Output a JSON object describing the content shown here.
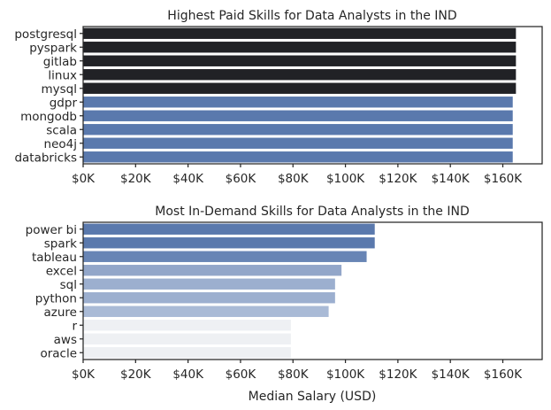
{
  "chart_data": [
    {
      "type": "bar",
      "orientation": "horizontal",
      "title": "Highest Paid Skills for Data Analysts in the IND",
      "xlabel": "",
      "ylabel": "",
      "xlim": [
        0,
        175000
      ],
      "xticks": [
        0,
        20000,
        40000,
        60000,
        80000,
        100000,
        120000,
        140000,
        160000
      ],
      "xtick_labels": [
        "$0K",
        "$20K",
        "$40K",
        "$60K",
        "$80K",
        "$100K",
        "$120K",
        "$140K",
        "$160K"
      ],
      "categories": [
        "postgresql",
        "pyspark",
        "gitlab",
        "linux",
        "mysql",
        "gdpr",
        "mongodb",
        "scala",
        "neo4j",
        "databricks"
      ],
      "values": [
        165000,
        165000,
        165000,
        165000,
        165000,
        163782,
        163782,
        163782,
        163782,
        163782
      ],
      "colors": [
        "#212226",
        "#212226",
        "#212226",
        "#212226",
        "#212226",
        "#5a79ad",
        "#5a79ad",
        "#5a79ad",
        "#5a79ad",
        "#5a79ad"
      ],
      "grid": false,
      "legend": "none"
    },
    {
      "type": "bar",
      "orientation": "horizontal",
      "title": "Most In-Demand Skills for Data Analysts in the IND",
      "xlabel": "Median Salary (USD)",
      "ylabel": "",
      "xlim": [
        0,
        175000
      ],
      "xticks": [
        0,
        20000,
        40000,
        60000,
        80000,
        100000,
        120000,
        140000,
        160000
      ],
      "xtick_labels": [
        "$0K",
        "$20K",
        "$40K",
        "$60K",
        "$80K",
        "$100K",
        "$120K",
        "$140K",
        "$160K"
      ],
      "categories": [
        "power bi",
        "spark",
        "tableau",
        "excel",
        "sql",
        "python",
        "azure",
        "r",
        "aws",
        "oracle"
      ],
      "values": [
        111175,
        111175,
        108087,
        98500,
        96050,
        96050,
        93600,
        79200,
        79200,
        79200
      ],
      "colors": [
        "#5a79ad",
        "#5a79ad",
        "#6885b5",
        "#92a6c9",
        "#9cafcf",
        "#9cafcf",
        "#a9bad6",
        "#eef0f3",
        "#eef0f3",
        "#eef0f3"
      ],
      "grid": false,
      "legend": "none"
    }
  ]
}
